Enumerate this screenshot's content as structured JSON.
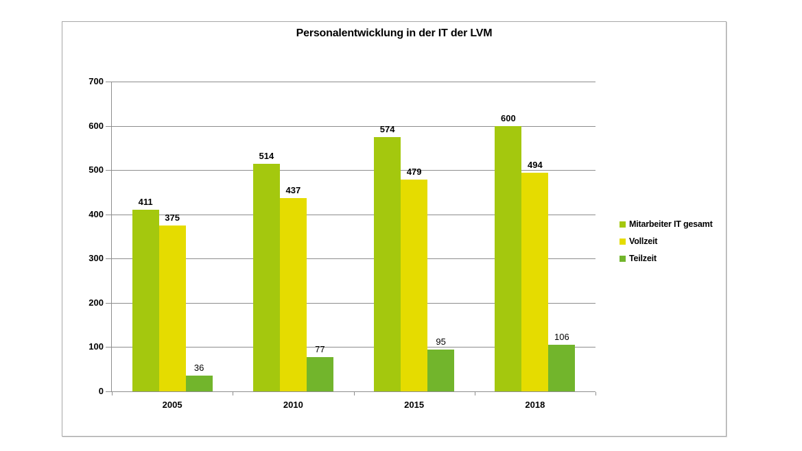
{
  "chart_data": {
    "type": "bar",
    "title": "Personalentwicklung in der IT der LVM",
    "categories": [
      "2005",
      "2010",
      "2015",
      "2018"
    ],
    "series": [
      {
        "name": "Mitarbeiter IT gesamt",
        "color": "#A4C80E",
        "values": [
          411,
          514,
          574,
          600
        ],
        "value_labels_bold": true
      },
      {
        "name": "Vollzeit",
        "color": "#E5DC00",
        "values": [
          375,
          437,
          479,
          494
        ],
        "value_labels_bold": true
      },
      {
        "name": "Teilzeit",
        "color": "#72B52C",
        "values": [
          36,
          77,
          95,
          106
        ],
        "value_labels_bold": false
      }
    ],
    "xlabel": "",
    "ylabel": "",
    "ylim": [
      0,
      700
    ],
    "yticks": [
      0,
      100,
      200,
      300,
      400,
      500,
      600,
      700
    ],
    "grid": true,
    "legend_position": "right",
    "colors": {
      "gridline": "#8C8C8C",
      "axis": "#8C8C8C",
      "frame_border": "#A6A6A6",
      "text": "#000000",
      "background": "#FFFFFF"
    }
  }
}
